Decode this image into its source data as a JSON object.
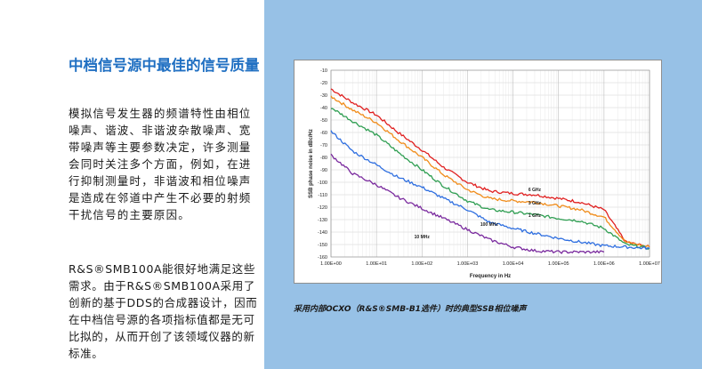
{
  "section": {
    "title": "中档信号源中最佳的信号质量",
    "paragraph1": "模拟信号发生器的频谱特性由相位噪声、谐波、非谐波杂散噪声、宽带噪声等主要参数决定，许多测量会同时关注多个方面，例如，在进行抑制测量时，非谐波和相位噪声是造成在邻道中产生不必要的射频干扰信号的主要原因。",
    "paragraph2": "R&S®SMB100A能很好地满足这些需求。由于R&S®SMB100A采用了创新的基于DDS的合成器设计，因而在中档信号源的各项指标值都是无可比拟的，从而开创了该领域仪器的新标准。"
  },
  "figure": {
    "caption": "采用内部OCXO（R&S®SMB-B1选件）时的典型SSB相位噪声"
  },
  "colors": {
    "accent": "#1f6fc2",
    "panel": "#97c1e6",
    "series_6ghz": "#e02020",
    "series_3ghz": "#f08c1a",
    "series_1ghz": "#2f9e52",
    "series_100mhz": "#2f6fe0",
    "series_10mhz": "#7a2a9e"
  },
  "chart_data": {
    "type": "line",
    "xlabel": "Frequency in Hz",
    "ylabel": "SSB phase noise in dBc/Hz",
    "xscale": "log",
    "xlim": [
      1,
      10000000
    ],
    "ylim": [
      -160,
      -10
    ],
    "grid": true,
    "x_tick_labels": [
      "1.00E+00",
      "1.00E+01",
      "1.00E+02",
      "1.00E+03",
      "1.00E+04",
      "1.00E+05",
      "1.00E+06",
      "1.00E+07"
    ],
    "y_tick_labels": [
      "-10",
      "-20",
      "-30",
      "-40",
      "-50",
      "-60",
      "-70",
      "-80",
      "-90",
      "-100",
      "-110",
      "-120",
      "-130",
      "-140",
      "-150",
      "-160"
    ],
    "series": [
      {
        "name": "6 GHz",
        "x": [
          1,
          3,
          10,
          30,
          100,
          300,
          1000,
          3000,
          10000,
          30000,
          100000,
          300000,
          1000000,
          3000000,
          10000000
        ],
        "values": [
          -25,
          -36,
          -46,
          -60,
          -74,
          -88,
          -100,
          -107,
          -109,
          -110,
          -113,
          -116,
          -122,
          -148,
          -152
        ]
      },
      {
        "name": "3 GHz",
        "x": [
          1,
          3,
          10,
          30,
          100,
          300,
          1000,
          3000,
          10000,
          30000,
          100000,
          300000,
          1000000,
          3000000,
          10000000
        ],
        "values": [
          -31,
          -42,
          -52,
          -66,
          -80,
          -94,
          -106,
          -113,
          -115,
          -116,
          -119,
          -122,
          -128,
          -148,
          -152
        ]
      },
      {
        "name": "1 GHz",
        "x": [
          1,
          3,
          10,
          30,
          100,
          300,
          1000,
          3000,
          10000,
          30000,
          100000,
          300000,
          1000000,
          3000000,
          10000000
        ],
        "values": [
          -40,
          -51,
          -62,
          -76,
          -90,
          -103,
          -115,
          -122,
          -124,
          -126,
          -129,
          -131,
          -137,
          -150,
          -153
        ]
      },
      {
        "name": "100 MHz",
        "x": [
          1,
          3,
          10,
          30,
          100,
          300,
          1000,
          3000,
          10000,
          30000,
          100000,
          300000,
          1000000,
          3000000,
          10000000
        ],
        "values": [
          -59,
          -75,
          -86,
          -96,
          -104,
          -113,
          -122,
          -132,
          -137,
          -141,
          -145,
          -148,
          -151,
          -152,
          -153
        ]
      },
      {
        "name": "10 MHz",
        "x": [
          1,
          3,
          10,
          30,
          100,
          300,
          1000,
          3000,
          10000,
          30000,
          100000,
          300000,
          1000000
        ],
        "values": [
          -78,
          -93,
          -102,
          -112,
          -121,
          -129,
          -138,
          -146,
          -152,
          -155,
          -156,
          -156,
          -156
        ]
      }
    ]
  }
}
